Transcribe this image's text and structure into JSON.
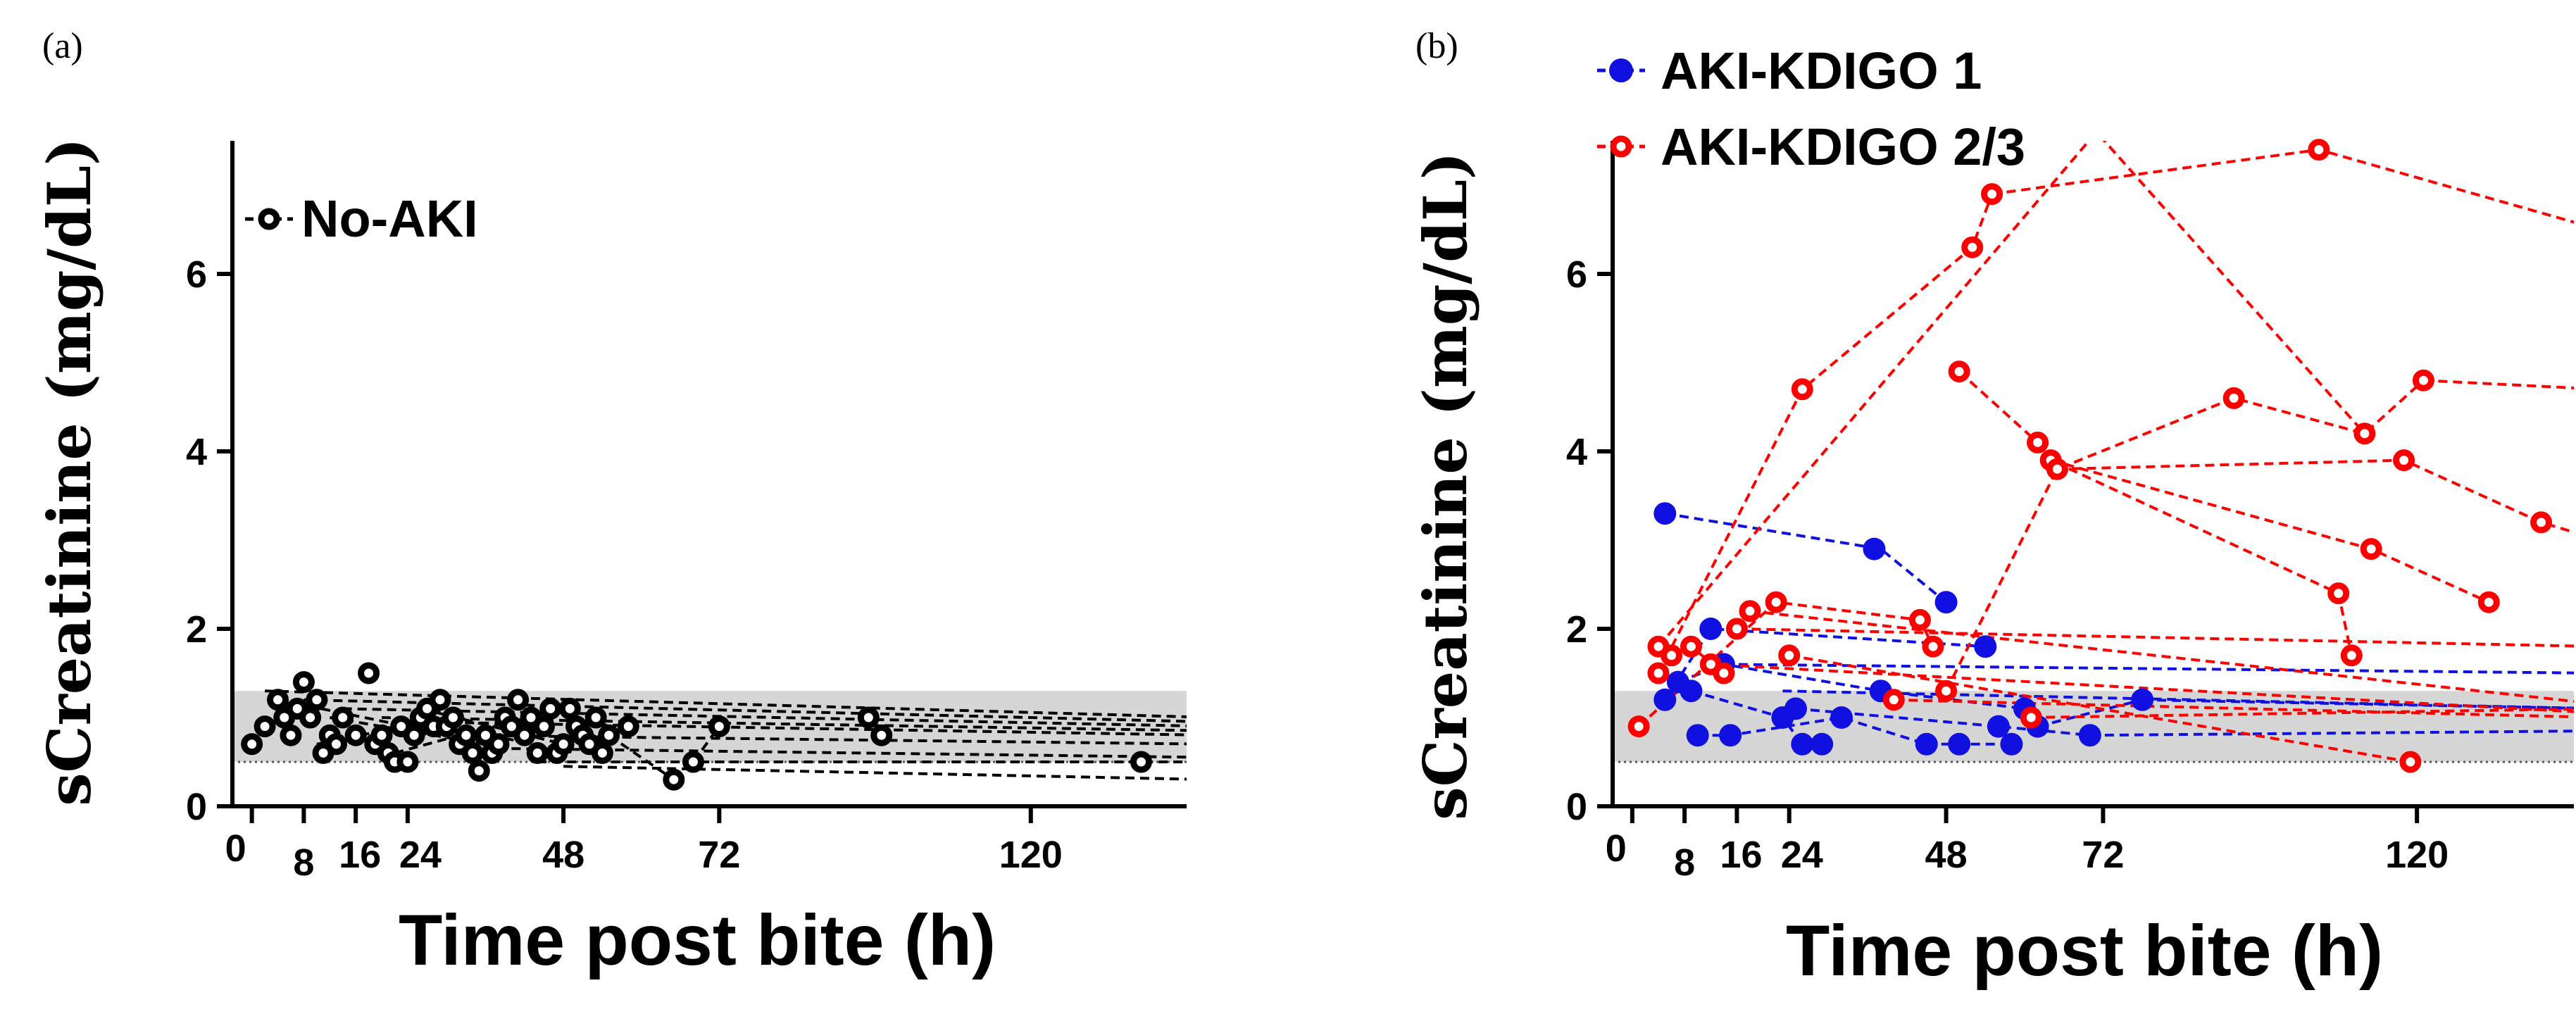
{
  "chart_data": [
    {
      "panel": "(a)",
      "type": "scatter",
      "xlabel": "Time post bite (h)",
      "ylabel": "sCreatinine (mg/dL)",
      "xlim": [
        -3,
        144
      ],
      "ylim": [
        0,
        7.5
      ],
      "xticks": [
        0,
        8,
        16,
        24,
        48,
        72,
        120
      ],
      "xtick_labels": [
        "0",
        "8",
        "16",
        "24",
        "48",
        "72",
        "120"
      ],
      "yticks": [
        0,
        2,
        4,
        6
      ],
      "ytick_labels": [
        "0",
        "2",
        "4",
        "6"
      ],
      "normal_range": [
        0.5,
        1.3
      ],
      "grid": false,
      "legend_position": "top-left",
      "series": [
        {
          "name": "No-AKI",
          "color": "#000000",
          "marker": "circle",
          "points": [
            [
              0,
              0.7
            ],
            [
              2,
              0.9
            ],
            [
              4,
              1.2
            ],
            [
              5,
              1.0
            ],
            [
              6,
              0.8
            ],
            [
              7,
              1.1
            ],
            [
              8,
              1.4
            ],
            [
              9,
              1.0
            ],
            [
              10,
              1.2
            ],
            [
              11,
              0.6
            ],
            [
              12,
              0.8
            ],
            [
              13,
              0.7
            ],
            [
              14,
              1.0
            ],
            [
              16,
              0.8
            ],
            [
              18,
              1.5
            ],
            [
              19,
              0.7
            ],
            [
              20,
              0.8
            ],
            [
              21,
              0.6
            ],
            [
              22,
              0.5
            ],
            [
              23,
              0.9
            ],
            [
              24,
              0.5
            ],
            [
              25,
              0.8
            ],
            [
              26,
              1.0
            ],
            [
              27,
              1.1
            ],
            [
              28,
              0.9
            ],
            [
              29,
              1.2
            ],
            [
              30,
              0.9
            ],
            [
              31,
              1.0
            ],
            [
              32,
              0.7
            ],
            [
              33,
              0.8
            ],
            [
              34,
              0.6
            ],
            [
              35,
              0.4
            ],
            [
              36,
              0.8
            ],
            [
              37,
              0.6
            ],
            [
              38,
              0.7
            ],
            [
              39,
              1.0
            ],
            [
              40,
              0.9
            ],
            [
              41,
              1.2
            ],
            [
              42,
              0.8
            ],
            [
              43,
              1.0
            ],
            [
              44,
              0.6
            ],
            [
              45,
              0.9
            ],
            [
              46,
              1.1
            ],
            [
              47,
              0.6
            ],
            [
              48,
              0.7
            ],
            [
              49,
              1.1
            ],
            [
              50,
              0.9
            ],
            [
              51,
              0.8
            ],
            [
              52,
              0.7
            ],
            [
              53,
              1.0
            ],
            [
              54,
              0.6
            ],
            [
              55,
              0.8
            ],
            [
              58,
              0.9
            ],
            [
              65,
              0.3
            ],
            [
              68,
              0.5
            ],
            [
              72,
              0.9
            ],
            [
              95,
              1.0
            ],
            [
              97,
              0.8
            ],
            [
              137,
              0.5
            ]
          ],
          "lines": [
            {
              "x": [
                2,
                148
              ],
              "y": [
                1.3,
                1.0
              ]
            },
            {
              "x": [
                8,
                148
              ],
              "y": [
                1.2,
                0.95
              ]
            },
            {
              "x": [
                14,
                148
              ],
              "y": [
                1.1,
                0.9
              ]
            },
            {
              "x": [
                20,
                148
              ],
              "y": [
                1.0,
                0.85
              ]
            },
            {
              "x": [
                26,
                148
              ],
              "y": [
                0.95,
                0.8
              ]
            },
            {
              "x": [
                32,
                148
              ],
              "y": [
                0.8,
                0.7
              ]
            },
            {
              "x": [
                40,
                148
              ],
              "y": [
                0.65,
                0.55
              ]
            },
            {
              "x": [
                44,
                148
              ],
              "y": [
                0.5,
                0.5
              ]
            },
            {
              "x": [
                48,
                148
              ],
              "y": [
                0.45,
                0.3
              ]
            },
            {
              "x": [
                4,
                24
              ],
              "y": [
                1.2,
                0.9
              ]
            },
            {
              "x": [
                10,
                30
              ],
              "y": [
                0.7,
                1.0
              ]
            },
            {
              "x": [
                12,
                36
              ],
              "y": [
                1.0,
                0.7
              ]
            },
            {
              "x": [
                22,
                42
              ],
              "y": [
                0.6,
                1.0
              ]
            },
            {
              "x": [
                26,
                48
              ],
              "y": [
                1.1,
                0.7
              ]
            },
            {
              "x": [
                30,
                50
              ],
              "y": [
                0.9,
                0.6
              ]
            },
            {
              "x": [
                55,
                65
              ],
              "y": [
                0.8,
                0.3
              ]
            },
            {
              "x": [
                68,
                72
              ],
              "y": [
                0.5,
                0.9
              ]
            },
            {
              "x": [
                95,
                97
              ],
              "y": [
                1.0,
                0.8
              ]
            }
          ]
        }
      ]
    },
    {
      "panel": "(b)",
      "type": "scatter",
      "xlabel": "Time post bite (h)",
      "ylabel": "sCreatinine (mg/dL)",
      "xlim": [
        -3,
        144
      ],
      "ylim": [
        0,
        7.5
      ],
      "xticks": [
        0,
        8,
        16,
        24,
        48,
        72,
        120
      ],
      "xtick_labels": [
        "0",
        "8",
        "16",
        "24",
        "48",
        "72",
        "120"
      ],
      "yticks": [
        0,
        2,
        4,
        6
      ],
      "ytick_labels": [
        "0",
        "2",
        "4",
        "6"
      ],
      "normal_range": [
        0.5,
        1.3
      ],
      "grid": false,
      "legend_position": "top-left",
      "series": [
        {
          "name": "AKI-KDIGO 1",
          "color": "#1010e0",
          "marker": "filled-circle",
          "points": [
            [
              5,
              3.3
            ],
            [
              5,
              1.2
            ],
            [
              7,
              1.4
            ],
            [
              9,
              1.3
            ],
            [
              10,
              0.8
            ],
            [
              12,
              2.0
            ],
            [
              14,
              1.6
            ],
            [
              15,
              0.8
            ],
            [
              23,
              1.0
            ],
            [
              25,
              1.1
            ],
            [
              26,
              0.7
            ],
            [
              29,
              0.7
            ],
            [
              32,
              1.0
            ],
            [
              37,
              2.9
            ],
            [
              38,
              1.3
            ],
            [
              45,
              0.7
            ],
            [
              48,
              2.3
            ],
            [
              50,
              0.7
            ],
            [
              54,
              1.8
            ],
            [
              56,
              0.9
            ],
            [
              58,
              0.7
            ],
            [
              60,
              1.1
            ],
            [
              62,
              0.9
            ],
            [
              70,
              0.8
            ],
            [
              78,
              1.2
            ]
          ],
          "lines": [
            {
              "x": [
                5,
                38,
                48
              ],
              "y": [
                3.3,
                2.9,
                2.3
              ]
            },
            {
              "x": [
                5,
                12,
                54
              ],
              "y": [
                1.2,
                2.0,
                1.8
              ]
            },
            {
              "x": [
                7,
                14,
                38,
                60
              ],
              "y": [
                1.4,
                1.6,
                1.3,
                1.1
              ]
            },
            {
              "x": [
                9,
                23,
                26,
                29
              ],
              "y": [
                1.3,
                1.0,
                0.7,
                0.7
              ]
            },
            {
              "x": [
                10,
                15,
                32,
                45
              ],
              "y": [
                0.8,
                0.8,
                1.0,
                0.7
              ]
            },
            {
              "x": [
                45,
                50,
                58
              ],
              "y": [
                0.7,
                0.7,
                0.7
              ]
            },
            {
              "x": [
                25,
                56,
                70
              ],
              "y": [
                1.1,
                0.9,
                0.8
              ]
            },
            {
              "x": [
                60,
                62
              ],
              "y": [
                1.1,
                0.9
              ]
            },
            {
              "x": [
                62,
                78
              ],
              "y": [
                0.9,
                1.2
              ]
            },
            {
              "x": [
                14,
                148
              ],
              "y": [
                1.6,
                1.5
              ]
            },
            {
              "x": [
                23,
                148
              ],
              "y": [
                1.3,
                1.1
              ]
            },
            {
              "x": [
                78,
                148
              ],
              "y": [
                1.2,
                1.1
              ]
            },
            {
              "x": [
                70,
                148
              ],
              "y": [
                0.8,
                0.85
              ]
            }
          ]
        },
        {
          "name": "AKI-KDIGO 2/3",
          "color": "#ff0000",
          "marker": "open-circle",
          "points": [
            [
              1,
              0.9
            ],
            [
              4,
              1.5
            ],
            [
              4,
              1.8
            ],
            [
              6,
              1.7
            ],
            [
              9,
              1.8
            ],
            [
              12,
              1.6
            ],
            [
              14,
              1.5
            ],
            [
              16,
              2.0
            ],
            [
              18,
              2.2
            ],
            [
              22,
              2.3
            ],
            [
              24,
              1.7
            ],
            [
              26,
              4.7
            ],
            [
              40,
              1.2
            ],
            [
              44,
              2.1
            ],
            [
              46,
              1.8
            ],
            [
              48,
              1.3
            ],
            [
              50,
              4.9
            ],
            [
              52,
              6.3
            ],
            [
              55,
              6.9
            ],
            [
              62,
              4.1
            ],
            [
              64,
              3.9
            ],
            [
              65,
              3.8
            ],
            [
              92,
              4.6
            ],
            [
              105,
              7.4
            ],
            [
              108,
              2.4
            ],
            [
              110,
              1.7
            ],
            [
              112,
              4.2
            ],
            [
              113,
              2.9
            ],
            [
              118,
              3.9
            ],
            [
              119,
              0.5
            ],
            [
              121,
              4.8
            ],
            [
              131,
              2.3
            ],
            [
              139,
              3.2
            ],
            [
              61,
              1.0
            ]
          ],
          "lines": [
            {
              "x": [
                4,
                26,
                52,
                55
              ],
              "y": [
                1.5,
                4.7,
                6.3,
                6.9
              ]
            },
            {
              "x": [
                55,
                105,
                148
              ],
              "y": [
                6.9,
                7.4,
                6.5
              ]
            },
            {
              "x": [
                4,
                71,
                112
              ],
              "y": [
                1.8,
                7.6,
                4.2
              ]
            },
            {
              "x": [
                50,
                62,
                64,
                108,
                110
              ],
              "y": [
                4.9,
                4.1,
                3.9,
                2.4,
                1.7
              ]
            },
            {
              "x": [
                48,
                65,
                92,
                112,
                121
              ],
              "y": [
                1.3,
                3.8,
                4.6,
                4.2,
                4.8
              ]
            },
            {
              "x": [
                121,
                148
              ],
              "y": [
                4.8,
                4.7
              ]
            },
            {
              "x": [
                64,
                113,
                131
              ],
              "y": [
                3.9,
                2.9,
                2.3
              ]
            },
            {
              "x": [
                65,
                118,
                139,
                148
              ],
              "y": [
                3.8,
                3.9,
                3.2,
                3.0
              ]
            },
            {
              "x": [
                1,
                22,
                44,
                46
              ],
              "y": [
                0.9,
                2.3,
                2.1,
                1.8
              ]
            },
            {
              "x": [
                16,
                148
              ],
              "y": [
                2.0,
                1.8
              ]
            },
            {
              "x": [
                18,
                148
              ],
              "y": [
                2.2,
                1.15
              ]
            },
            {
              "x": [
                12,
                148
              ],
              "y": [
                1.6,
                1.05
              ]
            },
            {
              "x": [
                24,
                119
              ],
              "y": [
                1.7,
                0.5
              ]
            },
            {
              "x": [
                40,
                148
              ],
              "y": [
                1.2,
                1.0
              ]
            },
            {
              "x": [
                61,
                148
              ],
              "y": [
                1.0,
                1.1
              ]
            },
            {
              "x": [
                6,
                9,
                14
              ],
              "y": [
                1.7,
                1.8,
                1.5
              ]
            }
          ]
        }
      ]
    }
  ]
}
